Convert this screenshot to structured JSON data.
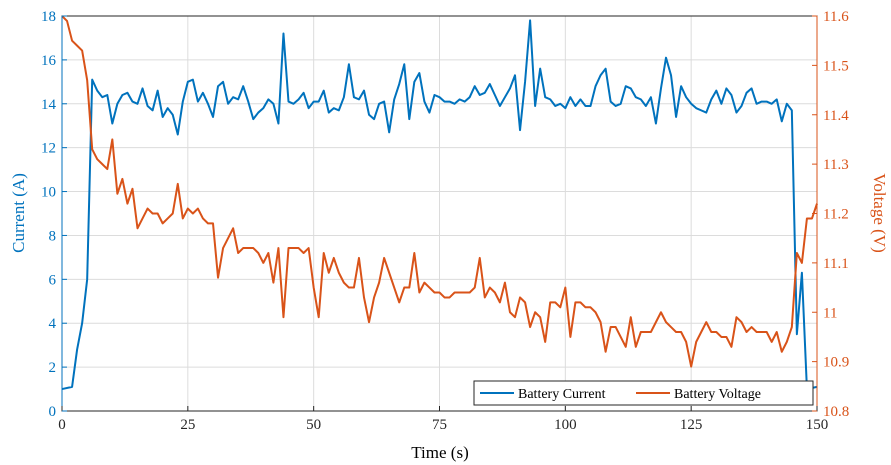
{
  "chart_data": {
    "type": "line",
    "xlabel": "Time (s)",
    "ylabel_left": "Current (A)",
    "ylabel_right": "Voltage (V)",
    "xlim": [
      0,
      150
    ],
    "ylim_left": [
      0,
      18
    ],
    "ylim_right": [
      10.8,
      11.6
    ],
    "xticks": [
      0,
      25,
      50,
      75,
      100,
      125,
      150
    ],
    "yticks_left": [
      0,
      2,
      4,
      6,
      8,
      10,
      12,
      14,
      16,
      18
    ],
    "yticks_right": [
      10.8,
      10.9,
      11,
      11.1,
      11.2,
      11.3,
      11.4,
      11.5,
      11.6
    ],
    "ytick_labels_right": [
      "10.8",
      "10.9",
      "11",
      "11.1",
      "11.2",
      "11.3",
      "11.4",
      "11.5",
      "11.6"
    ],
    "grid": true,
    "legend_position": "bottom-right",
    "series": [
      {
        "name": "Battery Current",
        "axis": "left",
        "color": "#0072BD",
        "points": [
          [
            0,
            1.0
          ],
          [
            2,
            1.1
          ],
          [
            3,
            2.8
          ],
          [
            4,
            4.0
          ],
          [
            5,
            6.0
          ],
          [
            6,
            15.1
          ],
          [
            7,
            14.6
          ],
          [
            8,
            14.3
          ],
          [
            9,
            14.4
          ],
          [
            10,
            13.1
          ],
          [
            11,
            14.0
          ],
          [
            12,
            14.4
          ],
          [
            13,
            14.5
          ],
          [
            14,
            14.1
          ],
          [
            15,
            14.0
          ],
          [
            16,
            14.7
          ],
          [
            17,
            13.9
          ],
          [
            18,
            13.7
          ],
          [
            19,
            14.6
          ],
          [
            20,
            13.4
          ],
          [
            21,
            13.8
          ],
          [
            22,
            13.5
          ],
          [
            23,
            12.6
          ],
          [
            24,
            14.1
          ],
          [
            25,
            15.0
          ],
          [
            26,
            15.1
          ],
          [
            27,
            14.1
          ],
          [
            28,
            14.5
          ],
          [
            29,
            14.0
          ],
          [
            30,
            13.4
          ],
          [
            31,
            14.8
          ],
          [
            32,
            15.0
          ],
          [
            33,
            14.0
          ],
          [
            34,
            14.3
          ],
          [
            35,
            14.2
          ],
          [
            36,
            14.8
          ],
          [
            37,
            14.1
          ],
          [
            38,
            13.3
          ],
          [
            39,
            13.6
          ],
          [
            40,
            13.8
          ],
          [
            41,
            14.2
          ],
          [
            42,
            14.0
          ],
          [
            43,
            13.1
          ],
          [
            44,
            17.2
          ],
          [
            45,
            14.1
          ],
          [
            46,
            14.0
          ],
          [
            47,
            14.2
          ],
          [
            48,
            14.5
          ],
          [
            49,
            13.8
          ],
          [
            50,
            14.1
          ],
          [
            51,
            14.1
          ],
          [
            52,
            14.6
          ],
          [
            53,
            13.6
          ],
          [
            54,
            13.8
          ],
          [
            55,
            13.7
          ],
          [
            56,
            14.3
          ],
          [
            57,
            15.8
          ],
          [
            58,
            14.3
          ],
          [
            59,
            14.2
          ],
          [
            60,
            14.6
          ],
          [
            61,
            13.5
          ],
          [
            62,
            13.3
          ],
          [
            63,
            14.0
          ],
          [
            64,
            14.1
          ],
          [
            65,
            12.7
          ],
          [
            66,
            14.2
          ],
          [
            67,
            14.9
          ],
          [
            68,
            15.8
          ],
          [
            69,
            13.3
          ],
          [
            70,
            15.0
          ],
          [
            71,
            15.4
          ],
          [
            72,
            14.1
          ],
          [
            73,
            13.6
          ],
          [
            74,
            14.4
          ],
          [
            75,
            14.3
          ],
          [
            76,
            14.1
          ],
          [
            77,
            14.1
          ],
          [
            78,
            14.0
          ],
          [
            79,
            14.2
          ],
          [
            80,
            14.1
          ],
          [
            81,
            14.3
          ],
          [
            82,
            14.8
          ],
          [
            83,
            14.4
          ],
          [
            84,
            14.5
          ],
          [
            85,
            14.9
          ],
          [
            86,
            14.4
          ],
          [
            87,
            13.9
          ],
          [
            88,
            14.3
          ],
          [
            89,
            14.7
          ],
          [
            90,
            15.3
          ],
          [
            91,
            12.8
          ],
          [
            92,
            15.0
          ],
          [
            93,
            17.8
          ],
          [
            94,
            13.9
          ],
          [
            95,
            15.6
          ],
          [
            96,
            14.3
          ],
          [
            97,
            14.2
          ],
          [
            98,
            13.9
          ],
          [
            99,
            14.0
          ],
          [
            100,
            13.8
          ],
          [
            101,
            14.3
          ],
          [
            102,
            13.9
          ],
          [
            103,
            14.2
          ],
          [
            104,
            13.9
          ],
          [
            105,
            13.9
          ],
          [
            106,
            14.8
          ],
          [
            107,
            15.3
          ],
          [
            108,
            15.6
          ],
          [
            109,
            14.1
          ],
          [
            110,
            13.9
          ],
          [
            111,
            14.0
          ],
          [
            112,
            14.8
          ],
          [
            113,
            14.7
          ],
          [
            114,
            14.3
          ],
          [
            115,
            14.2
          ],
          [
            116,
            13.9
          ],
          [
            117,
            14.3
          ],
          [
            118,
            13.1
          ],
          [
            119,
            14.7
          ],
          [
            120,
            16.1
          ],
          [
            121,
            15.3
          ],
          [
            122,
            13.4
          ],
          [
            123,
            14.8
          ],
          [
            124,
            14.3
          ],
          [
            125,
            14.0
          ],
          [
            126,
            13.8
          ],
          [
            127,
            13.7
          ],
          [
            128,
            13.6
          ],
          [
            129,
            14.2
          ],
          [
            130,
            14.6
          ],
          [
            131,
            14.0
          ],
          [
            132,
            14.7
          ],
          [
            133,
            14.4
          ],
          [
            134,
            13.6
          ],
          [
            135,
            13.9
          ],
          [
            136,
            14.5
          ],
          [
            137,
            14.7
          ],
          [
            138,
            14.0
          ],
          [
            139,
            14.1
          ],
          [
            140,
            14.1
          ],
          [
            141,
            14.0
          ],
          [
            142,
            14.2
          ],
          [
            143,
            13.2
          ],
          [
            144,
            14.0
          ],
          [
            145,
            13.7
          ],
          [
            146,
            3.5
          ],
          [
            147,
            6.3
          ],
          [
            148,
            1.0
          ],
          [
            150,
            1.1
          ]
        ]
      },
      {
        "name": "Battery Voltage",
        "axis": "right",
        "color": "#D95319",
        "points": [
          [
            0,
            11.6
          ],
          [
            1,
            11.59
          ],
          [
            2,
            11.55
          ],
          [
            3,
            11.54
          ],
          [
            4,
            11.53
          ],
          [
            5,
            11.47
          ],
          [
            6,
            11.33
          ],
          [
            7,
            11.31
          ],
          [
            8,
            11.3
          ],
          [
            9,
            11.29
          ],
          [
            10,
            11.35
          ],
          [
            11,
            11.24
          ],
          [
            12,
            11.27
          ],
          [
            13,
            11.22
          ],
          [
            14,
            11.25
          ],
          [
            15,
            11.17
          ],
          [
            16,
            11.19
          ],
          [
            17,
            11.21
          ],
          [
            18,
            11.2
          ],
          [
            19,
            11.2
          ],
          [
            20,
            11.18
          ],
          [
            21,
            11.19
          ],
          [
            22,
            11.2
          ],
          [
            23,
            11.26
          ],
          [
            24,
            11.19
          ],
          [
            25,
            11.21
          ],
          [
            26,
            11.2
          ],
          [
            27,
            11.21
          ],
          [
            28,
            11.19
          ],
          [
            29,
            11.18
          ],
          [
            30,
            11.18
          ],
          [
            31,
            11.07
          ],
          [
            32,
            11.13
          ],
          [
            33,
            11.15
          ],
          [
            34,
            11.17
          ],
          [
            35,
            11.12
          ],
          [
            36,
            11.13
          ],
          [
            37,
            11.13
          ],
          [
            38,
            11.13
          ],
          [
            39,
            11.12
          ],
          [
            40,
            11.1
          ],
          [
            41,
            11.12
          ],
          [
            42,
            11.06
          ],
          [
            43,
            11.13
          ],
          [
            44,
            10.99
          ],
          [
            45,
            11.13
          ],
          [
            46,
            11.13
          ],
          [
            47,
            11.13
          ],
          [
            48,
            11.12
          ],
          [
            49,
            11.13
          ],
          [
            50,
            11.05
          ],
          [
            51,
            10.99
          ],
          [
            52,
            11.12
          ],
          [
            53,
            11.08
          ],
          [
            54,
            11.11
          ],
          [
            55,
            11.08
          ],
          [
            56,
            11.06
          ],
          [
            57,
            11.05
          ],
          [
            58,
            11.05
          ],
          [
            59,
            11.11
          ],
          [
            60,
            11.03
          ],
          [
            61,
            10.98
          ],
          [
            62,
            11.03
          ],
          [
            63,
            11.06
          ],
          [
            64,
            11.11
          ],
          [
            65,
            11.08
          ],
          [
            66,
            11.05
          ],
          [
            67,
            11.02
          ],
          [
            68,
            11.05
          ],
          [
            69,
            11.05
          ],
          [
            70,
            11.12
          ],
          [
            71,
            11.04
          ],
          [
            72,
            11.06
          ],
          [
            73,
            11.05
          ],
          [
            74,
            11.04
          ],
          [
            75,
            11.04
          ],
          [
            76,
            11.03
          ],
          [
            77,
            11.03
          ],
          [
            78,
            11.04
          ],
          [
            79,
            11.04
          ],
          [
            80,
            11.04
          ],
          [
            81,
            11.04
          ],
          [
            82,
            11.05
          ],
          [
            83,
            11.11
          ],
          [
            84,
            11.03
          ],
          [
            85,
            11.05
          ],
          [
            86,
            11.04
          ],
          [
            87,
            11.02
          ],
          [
            88,
            11.06
          ],
          [
            89,
            11.0
          ],
          [
            90,
            10.99
          ],
          [
            91,
            11.03
          ],
          [
            92,
            11.02
          ],
          [
            93,
            10.97
          ],
          [
            94,
            11.0
          ],
          [
            95,
            10.99
          ],
          [
            96,
            10.94
          ],
          [
            97,
            11.02
          ],
          [
            98,
            11.02
          ],
          [
            99,
            11.01
          ],
          [
            100,
            11.05
          ],
          [
            101,
            10.95
          ],
          [
            102,
            11.02
          ],
          [
            103,
            11.02
          ],
          [
            104,
            11.01
          ],
          [
            105,
            11.01
          ],
          [
            106,
            11.0
          ],
          [
            107,
            10.98
          ],
          [
            108,
            10.92
          ],
          [
            109,
            10.97
          ],
          [
            110,
            10.97
          ],
          [
            111,
            10.95
          ],
          [
            112,
            10.93
          ],
          [
            113,
            10.99
          ],
          [
            114,
            10.93
          ],
          [
            115,
            10.96
          ],
          [
            116,
            10.96
          ],
          [
            117,
            10.96
          ],
          [
            118,
            10.98
          ],
          [
            119,
            11.0
          ],
          [
            120,
            10.98
          ],
          [
            121,
            10.97
          ],
          [
            122,
            10.96
          ],
          [
            123,
            10.96
          ],
          [
            124,
            10.94
          ],
          [
            125,
            10.89
          ],
          [
            126,
            10.94
          ],
          [
            127,
            10.96
          ],
          [
            128,
            10.98
          ],
          [
            129,
            10.96
          ],
          [
            130,
            10.96
          ],
          [
            131,
            10.95
          ],
          [
            132,
            10.95
          ],
          [
            133,
            10.93
          ],
          [
            134,
            10.99
          ],
          [
            135,
            10.98
          ],
          [
            136,
            10.96
          ],
          [
            137,
            10.97
          ],
          [
            138,
            10.96
          ],
          [
            139,
            10.96
          ],
          [
            140,
            10.96
          ],
          [
            141,
            10.94
          ],
          [
            142,
            10.96
          ],
          [
            143,
            10.92
          ],
          [
            144,
            10.94
          ],
          [
            145,
            10.97
          ],
          [
            146,
            11.12
          ],
          [
            147,
            11.1
          ],
          [
            148,
            11.19
          ],
          [
            149,
            11.19
          ],
          [
            150,
            11.22
          ]
        ]
      }
    ]
  }
}
